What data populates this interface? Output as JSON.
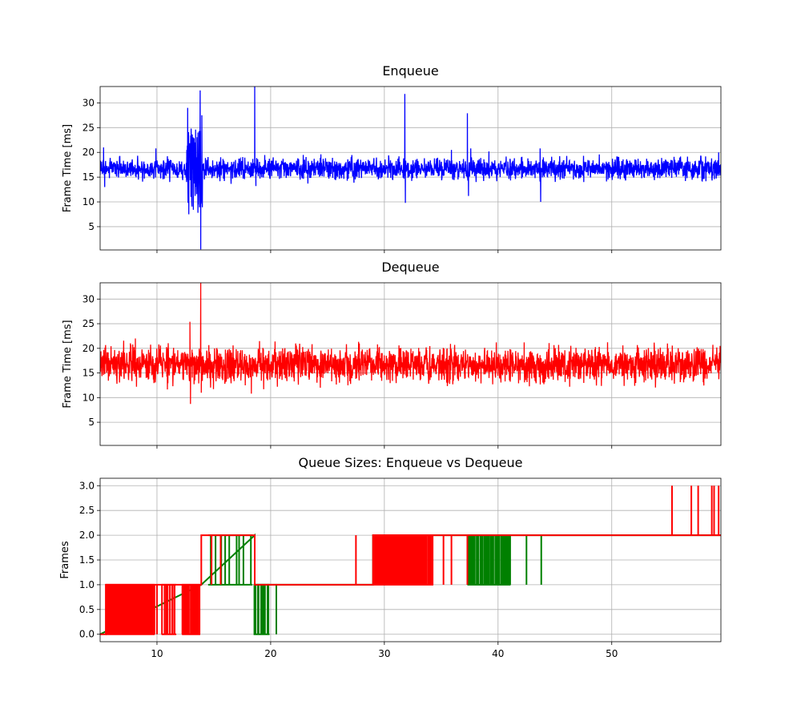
{
  "chart_data": [
    {
      "type": "line",
      "title": "Enqueue",
      "xlabel": "",
      "ylabel": "Frame Time [ms]",
      "xlim": [
        5,
        59.6
      ],
      "ylim": [
        0.3,
        33.3
      ],
      "xticks": [
        10,
        20,
        30,
        40,
        50
      ],
      "yticks": [
        5,
        10,
        15,
        20,
        25,
        30
      ],
      "show_x_ticklabels": false,
      "grid": true,
      "baseline_ms": 16.7,
      "noise_band_ms": [
        14.5,
        19.0
      ],
      "series": [
        {
          "color": "#0000ff"
        }
      ],
      "spikes": [
        {
          "x": 5.3,
          "y": 21.0
        },
        {
          "x": 5.4,
          "y": 13.0
        },
        {
          "x": 9.9,
          "y": 20.8
        },
        {
          "x": 12.7,
          "y": 29.0
        },
        {
          "x": 12.8,
          "y": 7.5
        },
        {
          "x": 13.0,
          "y": 24.8
        },
        {
          "x": 13.2,
          "y": 8.4
        },
        {
          "x": 13.4,
          "y": 24.6
        },
        {
          "x": 13.6,
          "y": 7.8
        },
        {
          "x": 13.8,
          "y": 32.5
        },
        {
          "x": 13.85,
          "y": 0.4
        },
        {
          "x": 13.95,
          "y": 27.5
        },
        {
          "x": 18.6,
          "y": 33.3
        },
        {
          "x": 18.7,
          "y": 13.2
        },
        {
          "x": 31.8,
          "y": 31.8
        },
        {
          "x": 31.85,
          "y": 9.8
        },
        {
          "x": 35.9,
          "y": 20.5
        },
        {
          "x": 37.3,
          "y": 27.9
        },
        {
          "x": 37.4,
          "y": 11.2
        },
        {
          "x": 37.6,
          "y": 20.8
        },
        {
          "x": 39.2,
          "y": 20.2
        },
        {
          "x": 43.7,
          "y": 20.8
        },
        {
          "x": 43.75,
          "y": 10.0
        },
        {
          "x": 59.4,
          "y": 20.0
        }
      ]
    },
    {
      "type": "line",
      "title": "Dequeue",
      "xlabel": "",
      "ylabel": "Frame Time [ms]",
      "xlim": [
        5,
        59.6
      ],
      "ylim": [
        0.3,
        33.3
      ],
      "xticks": [
        10,
        20,
        30,
        40,
        50
      ],
      "yticks": [
        5,
        10,
        15,
        20,
        25,
        30
      ],
      "show_x_ticklabels": false,
      "grid": true,
      "baseline_ms": 16.7,
      "noise_band_ms": [
        13.0,
        20.5
      ],
      "series": [
        {
          "color": "#ff0000"
        }
      ],
      "spikes": [
        {
          "x": 8.1,
          "y": 22.0
        },
        {
          "x": 8.2,
          "y": 12.2
        },
        {
          "x": 12.9,
          "y": 25.4
        },
        {
          "x": 12.95,
          "y": 8.7
        },
        {
          "x": 13.85,
          "y": 33.3
        },
        {
          "x": 13.9,
          "y": 11.0
        },
        {
          "x": 18.3,
          "y": 10.8
        },
        {
          "x": 22.2,
          "y": 21.0
        },
        {
          "x": 26.8,
          "y": 12.5
        },
        {
          "x": 27.8,
          "y": 21.0
        },
        {
          "x": 29.4,
          "y": 20.8
        },
        {
          "x": 33.9,
          "y": 12.8
        },
        {
          "x": 42.3,
          "y": 21.2
        },
        {
          "x": 46.3,
          "y": 12.2
        },
        {
          "x": 48.9,
          "y": 20.3
        },
        {
          "x": 54.9,
          "y": 21.0
        }
      ]
    },
    {
      "type": "line",
      "title": "Queue Sizes: Enqueue vs Dequeue",
      "xlabel": "",
      "ylabel": "Frames",
      "xlim": [
        5,
        59.6
      ],
      "ylim": [
        -0.15,
        3.15
      ],
      "xticks": [
        10,
        20,
        30,
        40,
        50
      ],
      "xticklabels": [
        "10",
        "20",
        "30",
        "40",
        "50"
      ],
      "yticks": [
        0.0,
        0.5,
        1.0,
        1.5,
        2.0,
        2.5,
        3.0
      ],
      "yticklabels": [
        "0.0",
        "0.5",
        "1.0",
        "1.5",
        "2.0",
        "2.5",
        "3.0"
      ],
      "grid": true,
      "series": [
        {
          "color": "#008000",
          "baseline": [
            [
              5,
              0
            ],
            [
              13.9,
              1
            ],
            [
              18.6,
              2
            ],
            [
              18.6,
              1
            ],
            [
              29.0,
              1
            ],
            [
              29.0,
              2
            ],
            [
              59.6,
              2
            ]
          ],
          "switch_regions": [
            {
              "x_range": [
                14.5,
                18.4
              ],
              "levels": [
                1,
                2
              ],
              "density": 9
            },
            {
              "x_range": [
                18.5,
                19.9
              ],
              "levels": [
                0,
                1
              ],
              "density": 10
            },
            {
              "x_range": [
                37.3,
                41.1
              ],
              "levels": [
                1,
                2
              ],
              "density": 35
            }
          ],
          "single_switches": [
            {
              "x": 20.5,
              "levels": [
                0,
                1
              ]
            },
            {
              "x": 31.8,
              "levels": [
                1,
                2
              ]
            },
            {
              "x": 42.5,
              "levels": [
                1,
                2
              ]
            },
            {
              "x": 43.8,
              "levels": [
                1,
                2
              ]
            }
          ]
        },
        {
          "color": "#ff0000",
          "baseline": [
            [
              5,
              0
            ],
            [
              5.5,
              0
            ],
            [
              5.5,
              1
            ],
            [
              13.9,
              1
            ],
            [
              13.9,
              2
            ],
            [
              18.6,
              2
            ],
            [
              18.6,
              1
            ],
            [
              29.0,
              1
            ],
            [
              29.0,
              2
            ],
            [
              59.6,
              2
            ]
          ],
          "switch_regions": [
            {
              "x_range": [
                5.5,
                9.8
              ],
              "levels": [
                0,
                1
              ],
              "density": 60
            },
            {
              "x_range": [
                10.4,
                11.7
              ],
              "levels": [
                0,
                1
              ],
              "density": 8
            },
            {
              "x_range": [
                12.2,
                13.8
              ],
              "levels": [
                0,
                1
              ],
              "density": 16
            },
            {
              "x_range": [
                29.0,
                34.3
              ],
              "levels": [
                1,
                2
              ],
              "density": 55
            }
          ],
          "single_switches": [
            {
              "x": 10.0,
              "levels": [
                0,
                1
              ]
            },
            {
              "x": 14.8,
              "levels": [
                1,
                2
              ]
            },
            {
              "x": 15.6,
              "levels": [
                1,
                2
              ]
            },
            {
              "x": 27.5,
              "levels": [
                1,
                2
              ]
            },
            {
              "x": 35.2,
              "levels": [
                1,
                2
              ]
            },
            {
              "x": 35.9,
              "levels": [
                1,
                2
              ]
            },
            {
              "x": 37.3,
              "levels": [
                1,
                2
              ]
            },
            {
              "x": 55.3,
              "levels": [
                2,
                3
              ]
            },
            {
              "x": 57.0,
              "levels": [
                2,
                3
              ]
            },
            {
              "x": 57.6,
              "levels": [
                2,
                3
              ]
            },
            {
              "x": 58.8,
              "levels": [
                2,
                3
              ]
            },
            {
              "x": 59.0,
              "levels": [
                2,
                3
              ]
            },
            {
              "x": 59.4,
              "levels": [
                2,
                3
              ]
            }
          ]
        }
      ]
    }
  ]
}
